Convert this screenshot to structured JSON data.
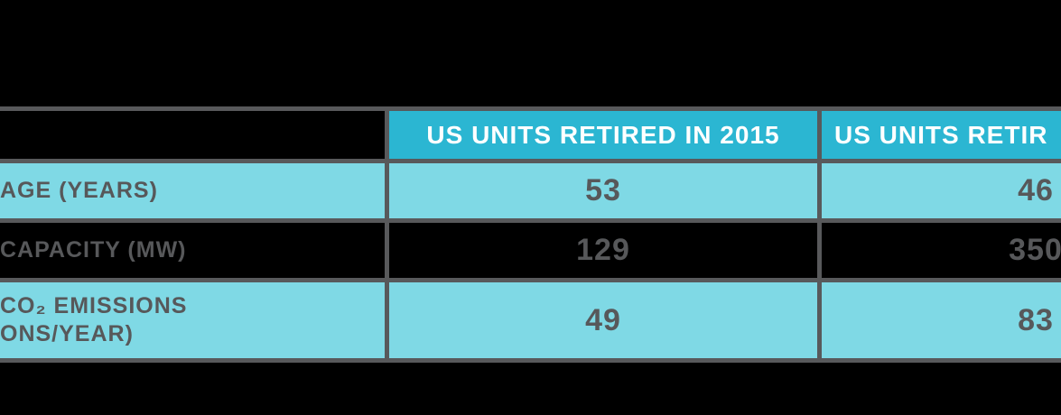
{
  "colors": {
    "background": "#000000",
    "header_teal": "#2BB6D2",
    "row_cyan": "#7FD9E5",
    "border_gray": "#58595B",
    "text_gray": "#57585A",
    "header_text": "#FFFFFF"
  },
  "chart_data": {
    "type": "table",
    "title": "",
    "columns": [
      "",
      "US UNITS RETIRED IN 2015",
      "US UNITS RETIR"
    ],
    "rows": [
      {
        "label": "AGE (YEARS)",
        "values": [
          53,
          46
        ]
      },
      {
        "label": "CAPACITY (MW)",
        "values": [
          129,
          350
        ]
      },
      {
        "label": "CO₂ EMISSIONS\nONS/YEAR)",
        "values": [
          49,
          83
        ]
      }
    ],
    "layout": {
      "grid": "thick gray borders between all cells",
      "truncated_left_edge": true,
      "truncated_right_edge": true,
      "header_row_background": "teal",
      "capacity_row_background": "black",
      "other_row_background": "light-cyan"
    }
  }
}
